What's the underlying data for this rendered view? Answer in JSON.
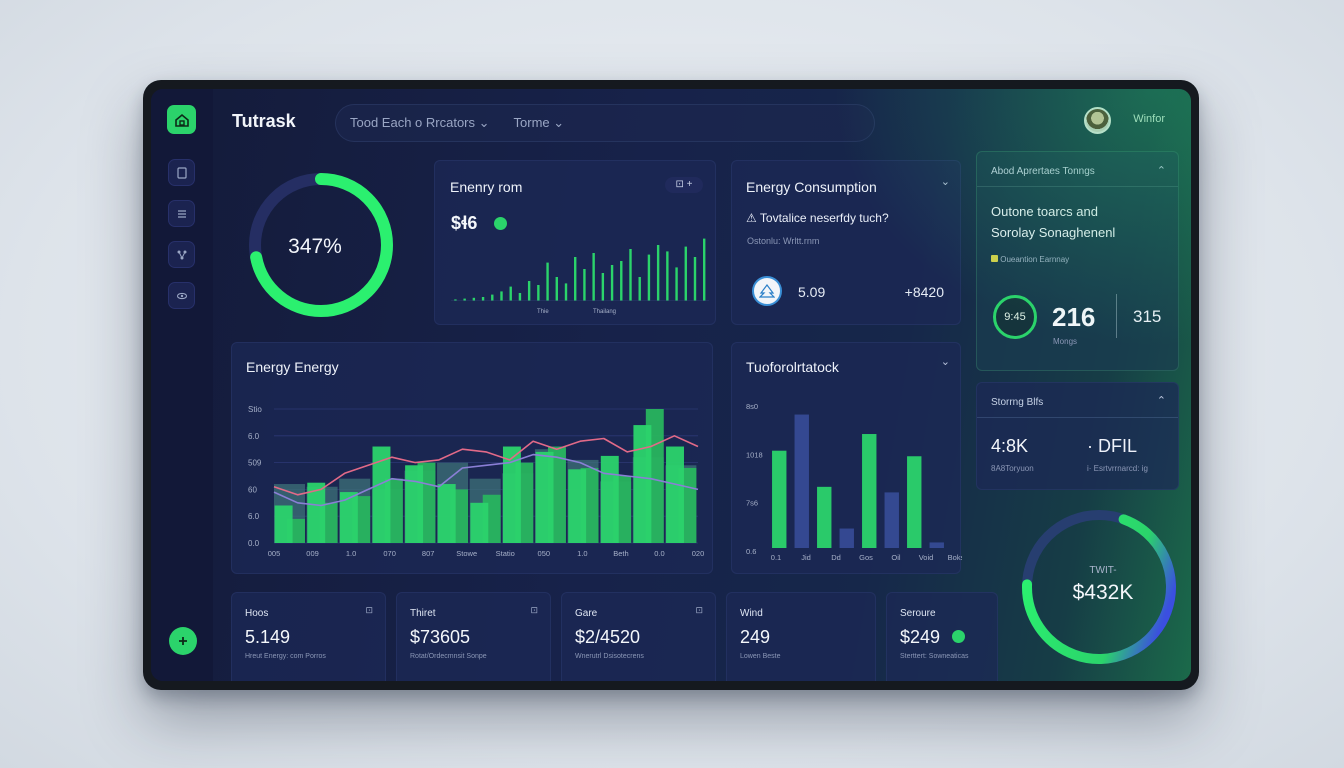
{
  "header": {
    "brand": "Tutrask",
    "search_text": "Tood Each o Rrcators",
    "search_chevron": "⌄",
    "tab": "Torme",
    "tab_chevron": "⌄",
    "user_name": "Winfor"
  },
  "sidebar": {
    "items": [
      {
        "icon": "home-icon"
      },
      {
        "icon": "document-icon"
      },
      {
        "icon": "list-icon"
      },
      {
        "icon": "network-icon"
      },
      {
        "icon": "eye-icon"
      }
    ],
    "bottom_icon": "plus-icon"
  },
  "gauge": {
    "value_label": "347%",
    "fraction": 0.72
  },
  "energy_card": {
    "title": "Enenry rom",
    "value": "$ɬ6",
    "footnote_left": "Thie",
    "footnote_right": "Thailang",
    "bars": [
      2,
      3,
      4,
      5,
      8,
      12,
      18,
      10,
      25,
      20,
      48,
      30,
      22,
      55,
      40,
      60,
      35,
      45,
      50,
      65,
      30,
      58,
      70,
      62,
      42,
      68,
      55,
      78
    ]
  },
  "consumption_card": {
    "title": "Energy Consumption",
    "alert": "Tovtalice neserfdy tuch?",
    "sub": "Ostonlu: Wrltt.rnm",
    "value_left": "5.09",
    "value_right": "+8420"
  },
  "about_card": {
    "title": "Abod Aprertaes Tonngs",
    "headline_1": "Outone toarcs and",
    "headline_2": "Sorolay Sonaghenenl",
    "tag": "Oueantion Earnnay",
    "ring_label": "9:45",
    "value": "216",
    "value_sub": "Mongs",
    "value_right": "315"
  },
  "main_chart": {
    "title": "Energy Energy",
    "y_ticks": [
      "Stio",
      "6.0",
      "509",
      "60",
      "6.0",
      "0.0"
    ],
    "x_ticks": [
      "005",
      "009",
      "1.0",
      "070",
      "807",
      "Stowe",
      "Statio",
      "050",
      "1.0",
      "Beth",
      "0.0",
      "020"
    ]
  },
  "chart_data": [
    {
      "type": "bar",
      "title": "Energy Energy",
      "series": [
        {
          "values": [
            28,
            45,
            38,
            72,
            58,
            44,
            30,
            72,
            68,
            55,
            65,
            88,
            72
          ]
        },
        {
          "values": [
            18,
            30,
            35,
            48,
            60,
            40,
            36,
            60,
            72,
            56,
            50,
            100,
            56
          ]
        },
        {
          "values": [
            44,
            42,
            48,
            40,
            54,
            60,
            48,
            52,
            70,
            62,
            46,
            64,
            58
          ]
        }
      ],
      "line_series": [
        {
          "values": [
            42,
            36,
            40,
            52,
            58,
            64,
            60,
            62,
            70,
            68,
            62,
            76,
            70,
            76,
            78,
            68,
            72,
            80,
            72
          ]
        },
        {
          "values": [
            38,
            30,
            28,
            32,
            40,
            48,
            46,
            42,
            56,
            58,
            60,
            66,
            64,
            60,
            52,
            50,
            48,
            44,
            40
          ]
        }
      ]
    },
    {
      "type": "bar",
      "title": "Tuoforolrtatock",
      "values": [
        70,
        96,
        44,
        14,
        82,
        40,
        66,
        4
      ],
      "y_ticks": [
        "8s0",
        "1018",
        "7s6",
        "0.6"
      ],
      "x_ticks": [
        "0.1",
        "Jid",
        "Dd",
        "Gos",
        "Oil",
        "Void",
        "Boks"
      ]
    }
  ],
  "small_chart": {
    "title": "Tuoforolrtatock"
  },
  "savings_card": {
    "title": "Storrng Blfs",
    "left_value": "4:8K",
    "left_sub": "8A8Toryuon",
    "right_value": "· DFIL",
    "right_sub": "i· Esrtvrrnarcd: ig"
  },
  "big_gauge": {
    "label": "TWIT-",
    "value": "$432K",
    "fraction": 0.7
  },
  "stats": [
    {
      "title": "Hoos",
      "value": "5.149",
      "sub": "Hreut Energy: com Porros"
    },
    {
      "title": "Thiret",
      "value": "$73605",
      "sub": "Rotat/Ordecmnsit Sonpe"
    },
    {
      "title": "Gare",
      "value": "$2/4520",
      "sub": "Wnerutrl Dsisotecrens"
    },
    {
      "title": "Wind",
      "value": "249",
      "sub": "Lowen Beste"
    },
    {
      "title": "Seroure",
      "value": "$249",
      "sub": "Sterttert: Sowneaticas"
    }
  ],
  "colors": {
    "accent": "#2bd36b",
    "bar_dark": "#3b6b74",
    "line_pink": "#e26a88",
    "line_purple": "#8a7fd6"
  }
}
